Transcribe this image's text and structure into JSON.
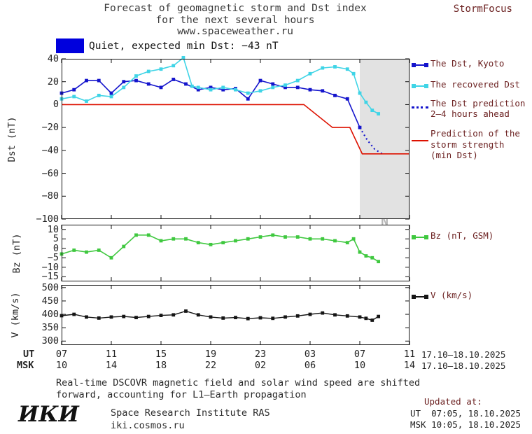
{
  "header": {
    "title_line1": "Forecast of geomagnetic storm and Dst index",
    "title_line2": "for the next several hours",
    "title_line3": "www.spaceweather.ru",
    "brand": "StormFocus"
  },
  "banner": {
    "text": "Quiet, expected min Dst: −43 nT"
  },
  "legend": {
    "dst_kyoto": "The Dst, Kyoto",
    "recovered": "The recovered Dst",
    "prediction_l1": "The Dst prediction",
    "prediction_l2": "2–4 hours ahead",
    "storm_l1": "Prediction of the",
    "storm_l2": "storm strength",
    "storm_l3": "(min Dst)",
    "bz": "Bz (nT, GSM)",
    "v": "V (km/s)"
  },
  "xaxis": {
    "ut_label": "UT",
    "msk_label": "MSK",
    "ut_ticks": [
      "07",
      "11",
      "15",
      "19",
      "23",
      "03",
      "07",
      "11"
    ],
    "msk_ticks": [
      "10",
      "14",
      "18",
      "22",
      "02",
      "06",
      "10",
      "14"
    ],
    "ut_date_range": "17.10–18.10.2025",
    "msk_date_range": "17.10–18.10.2025"
  },
  "footer": {
    "note_line1": "Real-time DSCOVR magnetic field and solar wind speed are shifted",
    "note_line2": "forward, accounting for L1–Earth propagation",
    "logo": "ИКИ",
    "institute": "Space Research Institute RAS",
    "site": "iki.cosmos.ru",
    "updated_label": "Updated at:",
    "updated_ut": "UT  07:05, 18.10.2025",
    "updated_msk": "MSK 10:05, 18.10.2025"
  },
  "colors": {
    "dst_blue": "#1414cc",
    "recovered_cyan": "#3fd4e6",
    "prediction_red": "#dd1100",
    "bz_green": "#3fc83f",
    "v_black": "#151515",
    "banner_blue": "#0000dd",
    "zone_gray": "#e2e2e2",
    "zone_text": "#b5b5b5",
    "legend_text": "#6b2020"
  },
  "chart_data": [
    {
      "id": "dst",
      "type": "line",
      "ylabel": "Dst (nT)",
      "ylim": [
        -100,
        40
      ],
      "yticks": [
        40,
        20,
        0,
        -20,
        -40,
        -60,
        -80,
        -100
      ],
      "xlim": [
        0,
        28
      ],
      "xtick_hours": [
        0,
        4,
        8,
        12,
        16,
        20,
        24,
        28
      ],
      "prediction_zone": {
        "start": 24,
        "end": 28,
        "label": "PREDICTION"
      },
      "series": [
        {
          "name": "The Dst, Kyoto",
          "slug": "dst-kyoto",
          "color": "#1414cc",
          "marker": true,
          "width": 1.6,
          "x": [
            0,
            1,
            2,
            3,
            4,
            5,
            6,
            7,
            8,
            9,
            10,
            11,
            12,
            13,
            14,
            15,
            16,
            17,
            18,
            19,
            20,
            21,
            22,
            23,
            24
          ],
          "y": [
            10,
            13,
            21,
            21,
            10,
            20,
            21,
            18,
            15,
            22,
            18,
            13,
            15,
            13,
            14,
            5,
            21,
            18,
            15,
            15,
            13,
            12,
            8,
            5,
            -20
          ]
        },
        {
          "name": "The recovered Dst",
          "slug": "recovered-dst",
          "color": "#3fd4e6",
          "marker": true,
          "width": 1.6,
          "x": [
            0,
            1,
            2,
            3,
            4,
            5,
            6,
            7,
            8,
            9,
            9.8,
            10.5,
            11,
            12,
            13,
            14,
            15,
            16,
            17,
            18,
            19,
            20,
            21,
            22,
            23,
            23.5,
            24,
            24.5,
            25,
            25.5
          ],
          "y": [
            5,
            7,
            3,
            8,
            7,
            15,
            25,
            29,
            31,
            34,
            41,
            16,
            15,
            13,
            15,
            13,
            10,
            12,
            15,
            17,
            21,
            27,
            32,
            33,
            31,
            27,
            10,
            2,
            -5,
            -8
          ]
        },
        {
          "name": "The Dst prediction 2–4 hours ahead",
          "slug": "dst-prediction",
          "color": "#1414cc",
          "marker": false,
          "dash": "2 4",
          "width": 2.2,
          "x": [
            24,
            24.6,
            25.2,
            25.8
          ],
          "y": [
            -20,
            -31,
            -39,
            -43
          ]
        },
        {
          "name": "Prediction of the storm strength (min Dst)",
          "slug": "storm-strength",
          "color": "#dd1100",
          "marker": false,
          "width": 1.6,
          "x": [
            0,
            19.5,
            21.8,
            23.2,
            24.2,
            28
          ],
          "y": [
            0,
            0,
            -20,
            -20,
            -43,
            -43
          ]
        }
      ]
    },
    {
      "id": "bz",
      "type": "line",
      "ylabel": "Bz (nT)",
      "ylim": [
        -17.5,
        12.5
      ],
      "yticks": [
        10,
        5,
        0,
        -5,
        -10,
        -15
      ],
      "xlim": [
        0,
        28
      ],
      "xtick_hours": [
        0,
        4,
        8,
        12,
        16,
        20,
        24,
        28
      ],
      "series": [
        {
          "name": "Bz (nT, GSM)",
          "slug": "bz-gsm",
          "color": "#3fc83f",
          "marker": true,
          "width": 1.6,
          "x": [
            0,
            1,
            2,
            3,
            4,
            5,
            6,
            7,
            8,
            9,
            10,
            11,
            12,
            13,
            14,
            15,
            16,
            17,
            18,
            19,
            20,
            21,
            22,
            23,
            23.5,
            24,
            24.5,
            25,
            25.5
          ],
          "y": [
            -3,
            -1,
            -2,
            -1,
            -5,
            1,
            7,
            7,
            4,
            5,
            5,
            3,
            2,
            3,
            4,
            5,
            6,
            7,
            6,
            6,
            5,
            5,
            4,
            3,
            5,
            -2,
            -4,
            -5,
            -7
          ]
        }
      ]
    },
    {
      "id": "v",
      "type": "line",
      "ylabel": "V (km/s)",
      "ylim": [
        285,
        510
      ],
      "yticks": [
        500,
        450,
        400,
        350,
        300
      ],
      "xlim": [
        0,
        28
      ],
      "xtick_hours": [
        0,
        4,
        8,
        12,
        16,
        20,
        24,
        28
      ],
      "series": [
        {
          "name": "V (km/s)",
          "slug": "solar-wind-speed",
          "color": "#151515",
          "marker": true,
          "width": 1.4,
          "x": [
            0,
            1,
            2,
            3,
            4,
            5,
            6,
            7,
            8,
            9,
            10,
            11,
            12,
            13,
            14,
            15,
            16,
            17,
            18,
            19,
            20,
            21,
            22,
            23,
            24,
            24.5,
            25,
            25.5
          ],
          "y": [
            395,
            400,
            390,
            386,
            390,
            392,
            388,
            392,
            396,
            398,
            412,
            398,
            390,
            386,
            388,
            384,
            387,
            385,
            390,
            394,
            400,
            405,
            398,
            394,
            390,
            385,
            378,
            392
          ]
        }
      ]
    }
  ]
}
